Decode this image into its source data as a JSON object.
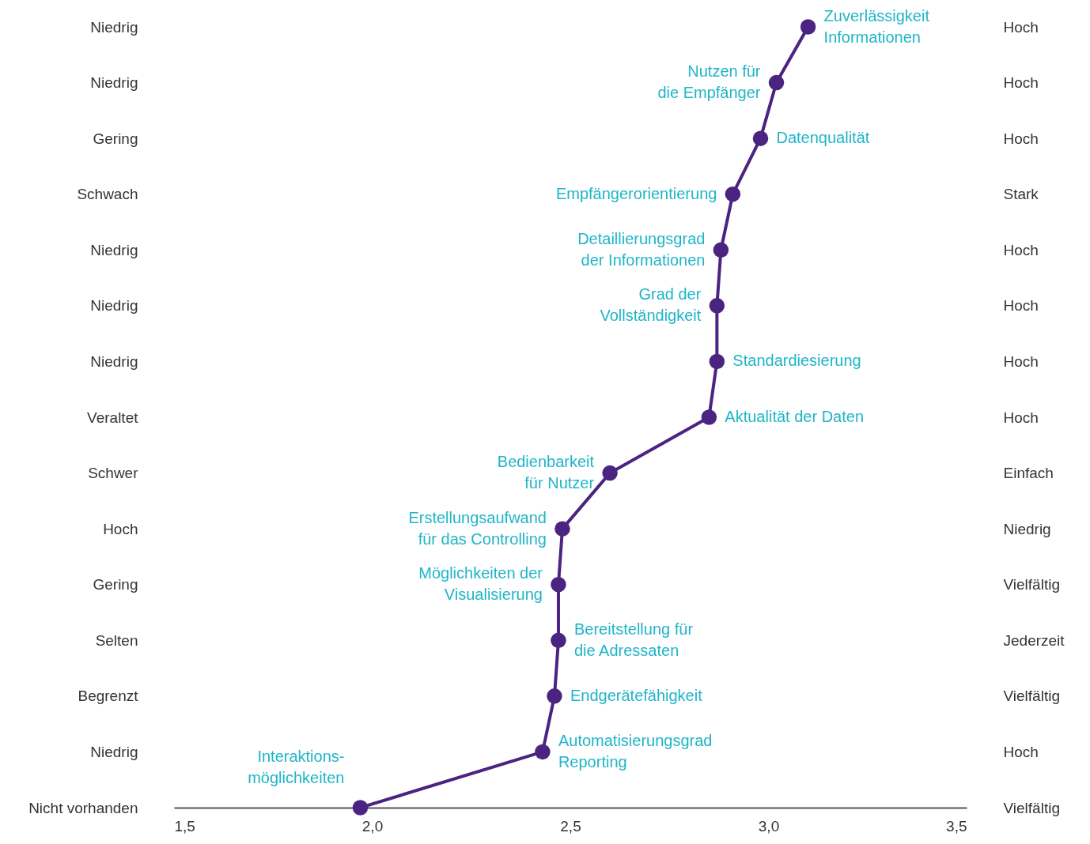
{
  "chart_data": {
    "type": "line",
    "orientation": "horizontal",
    "categories": [
      "Niedrig",
      "Niedrig",
      "Gering",
      "Schwach",
      "Niedrig",
      "Niedrig",
      "Niedrig",
      "Veraltet",
      "Schwer",
      "Hoch",
      "Gering",
      "Selten",
      "Begrenzt",
      "Niedrig",
      "Nicht vorhanden"
    ],
    "y2_categories": [
      "Hoch",
      "Hoch",
      "Hoch",
      "Stark",
      "Hoch",
      "Hoch",
      "Hoch",
      "Hoch",
      "Einfach",
      "Niedrig",
      "Vielfältig",
      "Jederzeit",
      "Vielfältig",
      "Hoch",
      "Vielfältig"
    ],
    "values": [
      3.1,
      3.02,
      2.98,
      2.91,
      2.88,
      2.87,
      2.87,
      2.85,
      2.6,
      2.48,
      2.47,
      2.47,
      2.46,
      2.43,
      1.97
    ],
    "value_labels": [
      "Zuverlässigkeit Informationen",
      "Nutzen für die Empfänger",
      "Datenqualität",
      "Empfängerorientierung",
      "Detaillierungsgrad der Informationen",
      "Grad der Vollständigkeit",
      "Standardiesierung",
      "Aktualität der Daten",
      "Bedienbarkeit für Nutzer",
      "Erstellungsaufwand für das Controlling",
      "Möglichkeiten der Visualisierung",
      "Bereitstellung für die Adressaten",
      "Endgerätefähigkeit",
      "Automatisierungsgrad Reporting",
      "Interaktions-möglichkeiten"
    ],
    "color": "#4b2380",
    "xlim": [
      1.5,
      3.5
    ],
    "xticks": [
      {
        "value": 1.5,
        "label": "1,5"
      },
      {
        "value": 2.0,
        "label": "2,0"
      },
      {
        "value": 2.5,
        "label": "2,5"
      },
      {
        "value": 3.0,
        "label": "3,0"
      },
      {
        "value": 3.5,
        "label": "3,5"
      }
    ],
    "marker": "circle",
    "line_style": "solid",
    "grid": false
  }
}
